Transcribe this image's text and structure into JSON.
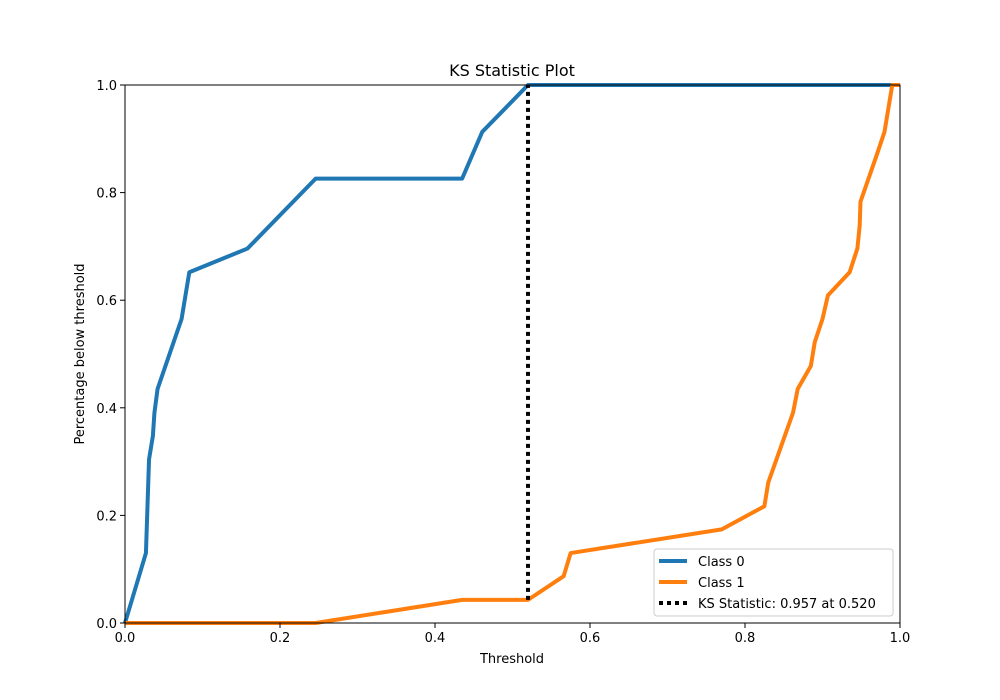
{
  "chart_data": {
    "type": "line",
    "title": "KS Statistic Plot",
    "xlabel": "Threshold",
    "ylabel": "Percentage below threshold",
    "xlim": [
      0.0,
      1.0
    ],
    "ylim": [
      0.0,
      1.0
    ],
    "xticks": [
      "0.0",
      "0.2",
      "0.4",
      "0.6",
      "0.8",
      "1.0"
    ],
    "yticks": [
      "0.0",
      "0.2",
      "0.4",
      "0.6",
      "0.8",
      "1.0"
    ],
    "grid": false,
    "legend_position": "lower-right",
    "series": [
      {
        "name": "Class 0",
        "color": "#1f77b4",
        "style": "solid",
        "x": [
          0.0,
          0.027,
          0.031,
          0.036,
          0.038,
          0.042,
          0.073,
          0.083,
          0.158,
          0.246,
          0.435,
          0.461,
          0.52,
          1.0
        ],
        "y": [
          0.0,
          0.13,
          0.304,
          0.348,
          0.391,
          0.435,
          0.565,
          0.652,
          0.696,
          0.826,
          0.826,
          0.913,
          1.0,
          1.0
        ]
      },
      {
        "name": "Class 1",
        "color": "#ff7f0e",
        "style": "solid",
        "x": [
          0.0,
          0.246,
          0.435,
          0.52,
          0.566,
          0.575,
          0.77,
          0.825,
          0.83,
          0.862,
          0.868,
          0.885,
          0.89,
          0.9,
          0.907,
          0.935,
          0.945,
          0.948,
          0.949,
          0.97,
          0.98,
          0.99,
          1.0
        ],
        "y": [
          0.0,
          0.0,
          0.043,
          0.043,
          0.087,
          0.13,
          0.174,
          0.217,
          0.261,
          0.391,
          0.435,
          0.478,
          0.522,
          0.565,
          0.609,
          0.652,
          0.696,
          0.739,
          0.783,
          0.87,
          0.913,
          1.0,
          1.0
        ]
      }
    ],
    "ks_line": {
      "label": "KS Statistic: 0.957 at 0.520",
      "x": 0.52,
      "y_from": 0.043,
      "y_to": 1.0,
      "color": "#000000",
      "style": "dotted"
    }
  }
}
